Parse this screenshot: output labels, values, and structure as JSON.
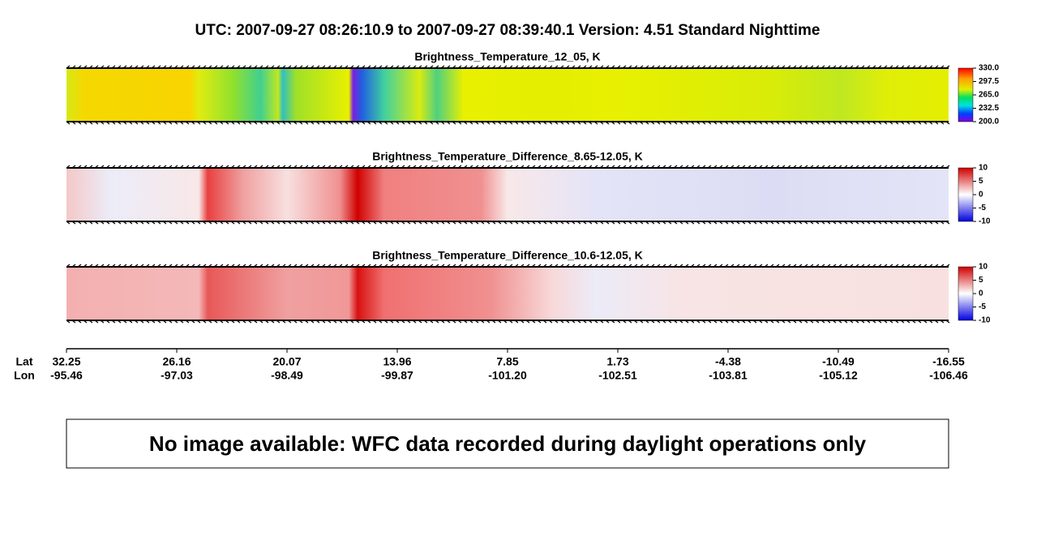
{
  "header": {
    "title": "UTC:  2007-09-27   08:26:10.9  to  2007-09-27   08:39:40.1    Version: 4.51  Standard Nighttime"
  },
  "panels": [
    {
      "title": "Brightness_Temperature_12_05, K",
      "clim": [
        200,
        330
      ],
      "ticks": [
        {
          "value": 330,
          "label": "330.0"
        },
        {
          "value": 297.5,
          "label": "297.5"
        },
        {
          "value": 265,
          "label": "265.0"
        },
        {
          "value": 232.5,
          "label": "232.5"
        },
        {
          "value": 200,
          "label": "200.0"
        }
      ]
    },
    {
      "title": "Brightness_Temperature_Difference_8.65-12.05, K",
      "clim": [
        -10,
        10
      ],
      "ticks": [
        10,
        5,
        0,
        -5,
        -10
      ]
    },
    {
      "title": "Brightness_Temperature_Difference_10.6-12.05, K",
      "clim": [
        -10,
        10
      ],
      "ticks": [
        10,
        5,
        0,
        -5,
        -10
      ]
    }
  ],
  "axis": {
    "lat_label": "Lat",
    "lon_label": "Lon",
    "lat": [
      "32.25",
      "26.16",
      "20.07",
      "13.96",
      "7.85",
      "1.73",
      "-4.38",
      "-10.49",
      "-16.55"
    ],
    "lon": [
      "-95.46",
      "-97.03",
      "-98.49",
      "-99.87",
      "-101.20",
      "-102.51",
      "-103.81",
      "-105.12",
      "-106.46"
    ]
  },
  "note": "No image available: WFC data recorded during daylight operations only"
}
